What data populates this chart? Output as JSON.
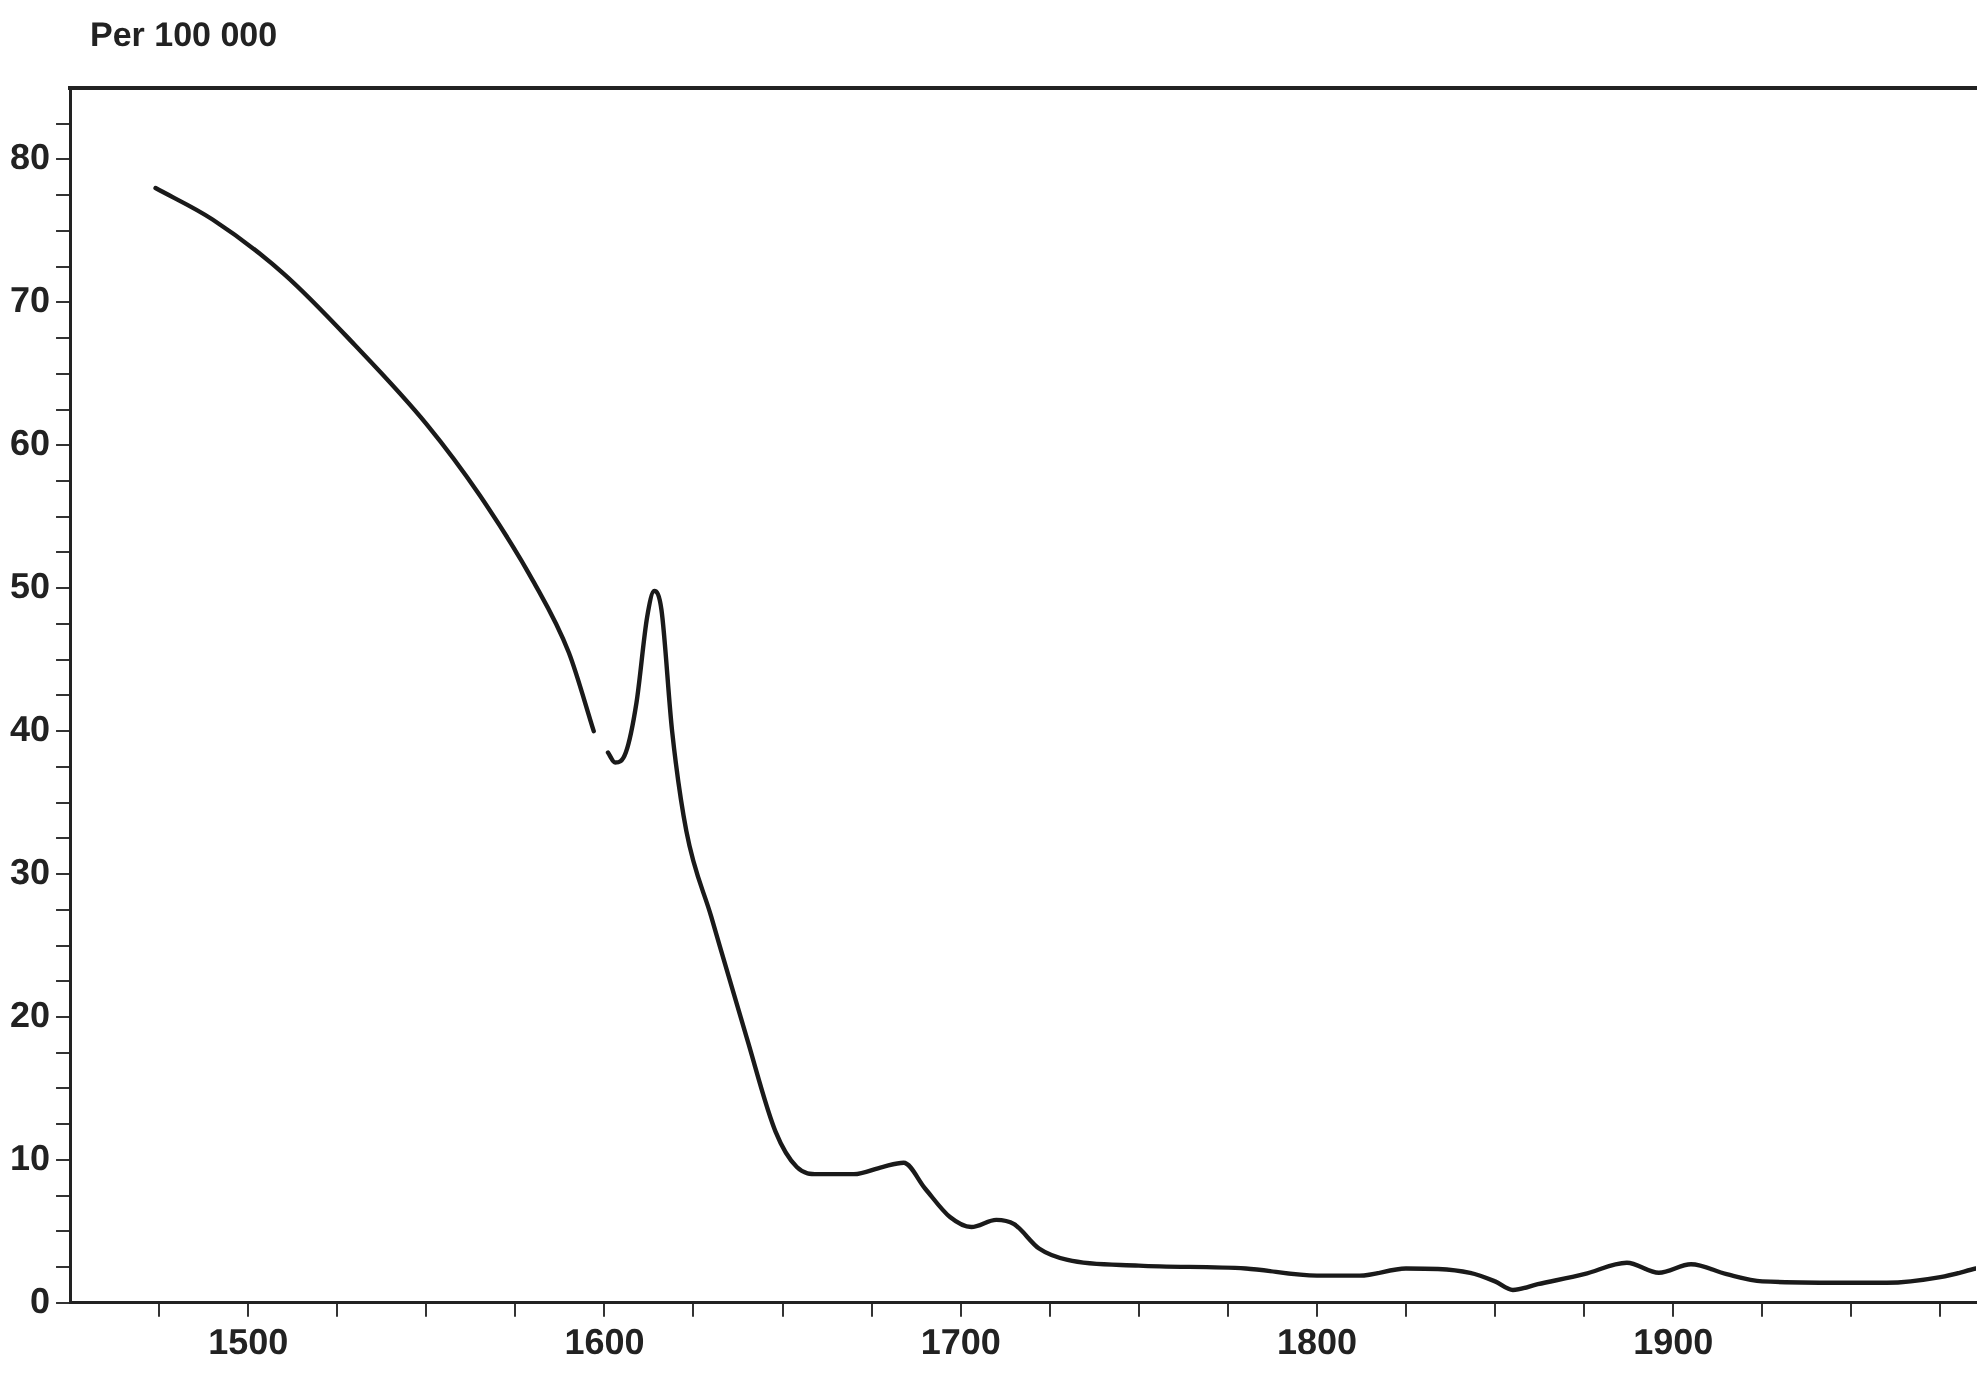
{
  "chart_data": {
    "type": "line",
    "ylabel": "Per 100 000",
    "x": [
      1474,
      1490,
      1510,
      1530,
      1550,
      1565,
      1580,
      1590,
      1597,
      1599,
      1601,
      1603,
      1606,
      1609,
      1612,
      1614,
      1616,
      1619,
      1623,
      1630,
      1640,
      1648,
      1654,
      1660,
      1670,
      1678,
      1684,
      1690,
      1697,
      1703,
      1710,
      1715,
      1722,
      1730,
      1750,
      1780,
      1800,
      1812,
      1825,
      1843,
      1850,
      1855,
      1862,
      1875,
      1887,
      1896,
      1905,
      1915,
      1925,
      1950,
      1960,
      1975,
      1985
    ],
    "series": [
      {
        "color": "#1a1a1a",
        "values": [
          78,
          75.8,
          72,
          67,
          61.5,
          56.5,
          50.5,
          45.5,
          40,
          null,
          38.5,
          37.8,
          38.5,
          42,
          48,
          49.8,
          48.5,
          40,
          33,
          27,
          18.5,
          12,
          9.5,
          9,
          9,
          9.5,
          9.8,
          8,
          6,
          5.3,
          5.8,
          5.5,
          3.8,
          3,
          2.6,
          2.4,
          1.9,
          1.9,
          2.4,
          2.1,
          1.5,
          0.9,
          1.3,
          2,
          2.8,
          2.1,
          2.7,
          2,
          1.5,
          1.4,
          1.4,
          1.8,
          2.4
        ]
      }
    ],
    "xlim": [
      1450,
      1985
    ],
    "xticks": [
      {
        "value": 1475,
        "label": null
      },
      1500,
      {
        "value": 1525,
        "label": null
      },
      {
        "value": 1550,
        "label": null
      },
      {
        "value": 1575,
        "label": null
      },
      1600,
      {
        "value": 1625,
        "label": null
      },
      {
        "value": 1650,
        "label": null
      },
      {
        "value": 1675,
        "label": null
      },
      1700,
      {
        "value": 1725,
        "label": null
      },
      {
        "value": 1750,
        "label": null
      },
      {
        "value": 1775,
        "label": null
      },
      1800,
      {
        "value": 1825,
        "label": null
      },
      {
        "value": 1850,
        "label": null
      },
      {
        "value": 1875,
        "label": null
      },
      1900,
      {
        "value": 1925,
        "label": null
      },
      {
        "value": 1950,
        "label": null
      },
      {
        "value": 1975,
        "label": null
      }
    ],
    "ylim": [
      0,
      85
    ],
    "yticks": [
      0,
      {
        "value": 2.5,
        "label": null
      },
      {
        "value": 5,
        "label": null
      },
      {
        "value": 7.5,
        "label": null
      },
      10,
      {
        "value": 12.5,
        "label": null
      },
      {
        "value": 15,
        "label": null
      },
      {
        "value": 17.5,
        "label": null
      },
      20,
      {
        "value": 22.5,
        "label": null
      },
      {
        "value": 25,
        "label": null
      },
      {
        "value": 27.5,
        "label": null
      },
      30,
      {
        "value": 32.5,
        "label": null
      },
      {
        "value": 35,
        "label": null
      },
      {
        "value": 37.5,
        "label": null
      },
      40,
      {
        "value": 42.5,
        "label": null
      },
      {
        "value": 45,
        "label": null
      },
      {
        "value": 47.5,
        "label": null
      },
      50,
      {
        "value": 52.5,
        "label": null
      },
      {
        "value": 55,
        "label": null
      },
      {
        "value": 57.5,
        "label": null
      },
      60,
      {
        "value": 62.5,
        "label": null
      },
      {
        "value": 65,
        "label": null
      },
      {
        "value": 67.5,
        "label": null
      },
      70,
      {
        "value": 72.5,
        "label": null
      },
      {
        "value": 75,
        "label": null
      },
      {
        "value": 77.5,
        "label": null
      },
      80,
      {
        "value": 82.5,
        "label": null
      }
    ]
  }
}
